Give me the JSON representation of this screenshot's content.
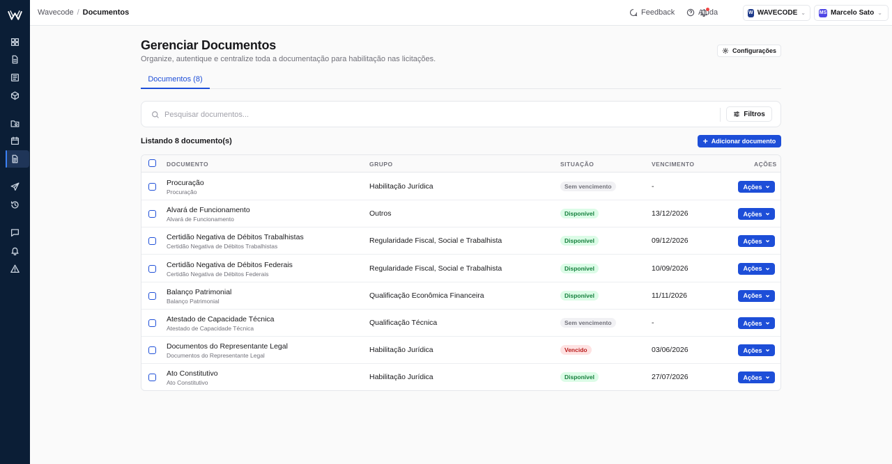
{
  "header": {
    "breadcrumb": [
      "Wavecode",
      "/",
      "Documentos"
    ],
    "feedback_label": "Feedback",
    "help_label": "Ajuda",
    "org_initial": "W",
    "org_name": "WAVECODE",
    "user_initials": "MS",
    "user_name": "Marcelo Sato"
  },
  "page": {
    "title": "Gerenciar Documentos",
    "subtitle": "Organize, autentique e centralize toda a documentação para habilitação nas licitações.",
    "config_label": "Configurações",
    "tab_label": "Documentos (8)"
  },
  "search": {
    "placeholder": "Pesquisar documentos...",
    "filter_label": "Filtros"
  },
  "list": {
    "count_label": "Listando 8 documento(s)",
    "add_label": "Adicionar documento"
  },
  "table": {
    "headers": [
      "DOCUMENTO",
      "GRUPO",
      "SITUAÇÃO",
      "VENCIMENTO",
      "AÇÕES"
    ],
    "action_label": "Ações",
    "rows": [
      {
        "name": "Procuração",
        "sub": "Procuração",
        "group": "Habilitação Jurídica",
        "status": "Sem vencimento",
        "status_type": "none",
        "due": "-"
      },
      {
        "name": "Alvará de Funcionamento",
        "sub": "Alvará de Funcionamento",
        "group": "Outros",
        "status": "Disponível",
        "status_type": "ok",
        "due": "13/12/2026"
      },
      {
        "name": "Certidão Negativa de Débitos Trabalhistas",
        "sub": "Certidão Negativa de Débitos Trabalhistas",
        "group": "Regularidade Fiscal, Social e Trabalhista",
        "status": "Disponível",
        "status_type": "ok",
        "due": "09/12/2026"
      },
      {
        "name": "Certidão Negativa de Débitos Federais",
        "sub": "Certidão Negativa de Débitos Federais",
        "group": "Regularidade Fiscal, Social e Trabalhista",
        "status": "Disponível",
        "status_type": "ok",
        "due": "10/09/2026"
      },
      {
        "name": "Balanço Patrimonial",
        "sub": "Balanço Patrimonial",
        "group": "Qualificação Econômica Financeira",
        "status": "Disponível",
        "status_type": "ok",
        "due": "11/11/2026"
      },
      {
        "name": "Atestado de Capacidade Técnica",
        "sub": "Atestado de Capacidade Técnica",
        "group": "Qualificação Técnica",
        "status": "Sem vencimento",
        "status_type": "none",
        "due": "-"
      },
      {
        "name": "Documentos do Representante Legal",
        "sub": "Documentos do Representante Legal",
        "group": "Habilitação Jurídica",
        "status": "Vencido",
        "status_type": "late",
        "due": "03/06/2026"
      },
      {
        "name": "Ato Constitutivo",
        "sub": "Ato Constitutivo",
        "group": "Habilitação Jurídica",
        "status": "Disponível",
        "status_type": "ok",
        "due": "27/07/2026"
      }
    ]
  },
  "colors": {
    "sidebar_bg": "#0b1e36",
    "accent": "#1d4ed8",
    "ok": "#15803d",
    "late": "#b91c1c"
  }
}
